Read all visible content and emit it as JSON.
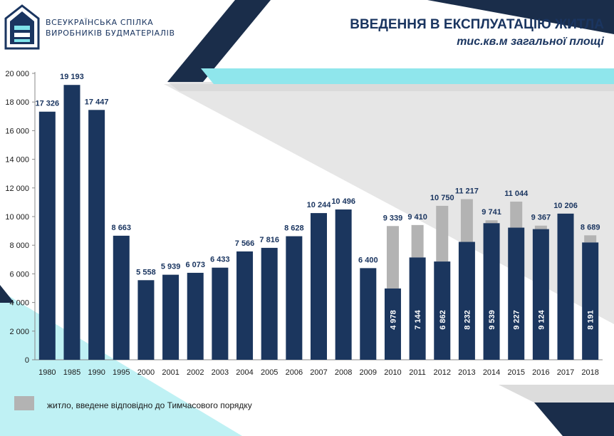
{
  "header": {
    "org_line1": "ВСЕУКРАЇНСЬКА СПІЛКА",
    "org_line2": "ВИРОБНИКІВ БУДМАТЕРІАЛІВ",
    "title": "ВВЕДЕННЯ В ЕКСПЛУАТАЦІЮ ЖИТЛА",
    "subtitle": "тис.кв.м загальної площі"
  },
  "legend": {
    "label": "житло, введене відповідно до Тимчасового порядку"
  },
  "colors": {
    "bar": "#1b365e",
    "gray": "#b3b3b3",
    "label": "#1a3560",
    "accent": "#7fe3ea"
  },
  "chart_data": {
    "type": "bar",
    "stacked": true,
    "title": "",
    "xlabel": "",
    "ylabel": "",
    "ylim": [
      0,
      20000
    ],
    "yticks": [
      0,
      2000,
      4000,
      6000,
      8000,
      10000,
      12000,
      14000,
      16000,
      18000,
      20000
    ],
    "ytick_labels": [
      "0",
      "2 000",
      "4 000",
      "6 000",
      "8 000",
      "10 000",
      "12 000",
      "14 000",
      "16 000",
      "18 000",
      "20 000"
    ],
    "grid": false,
    "legend_position": "bottom-left",
    "categories": [
      "1980",
      "1985",
      "1990",
      "1995",
      "2000",
      "2001",
      "2002",
      "2003",
      "2004",
      "2005",
      "2006",
      "2007",
      "2008",
      "2009",
      "2010",
      "2011",
      "2012",
      "2013",
      "2014",
      "2015",
      "2016",
      "2017",
      "2018"
    ],
    "series": [
      {
        "values": [
          17326,
          19193,
          17447,
          8663,
          5558,
          5939,
          6073,
          6433,
          7566,
          7816,
          8628,
          10244,
          10496,
          6400,
          4978,
          7144,
          6862,
          8232,
          9539,
          9227,
          9124,
          10206,
          8191
        ]
      },
      {
        "name": "житло, введене відповідно до Тимчасового порядку",
        "values": [
          0,
          0,
          0,
          0,
          0,
          0,
          0,
          0,
          0,
          0,
          0,
          0,
          0,
          0,
          4361,
          2266,
          3888,
          2985,
          202,
          1817,
          243,
          0,
          498
        ]
      }
    ],
    "total_labels": [
      "17 326",
      "19 193",
      "17 447",
      "8 663",
      "5 558",
      "5 939",
      "6 073",
      "6 433",
      "7 566",
      "7 816",
      "8 628",
      "10 244",
      "10 496",
      "6 400",
      "9 339",
      "9 410",
      "10 750",
      "11 217",
      "9 741",
      "11 044",
      "9 367",
      "10 206",
      "8 689"
    ],
    "inner_labels": [
      "",
      "",
      "",
      "",
      "",
      "",
      "",
      "",
      "",
      "",
      "",
      "",
      "",
      "",
      "4 978",
      "7 144",
      "6 862",
      "8 232",
      "9 539",
      "9 227",
      "9 124",
      "",
      "8 191"
    ]
  }
}
